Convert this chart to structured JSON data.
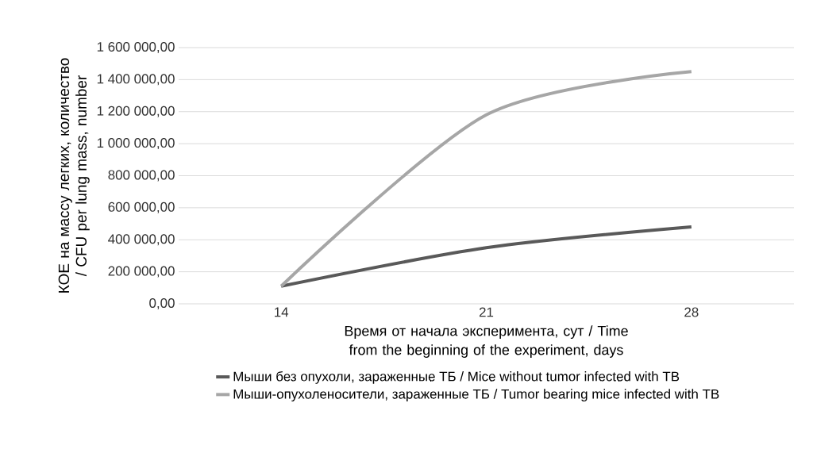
{
  "chart_data": {
    "type": "line",
    "xlabel": "Время от начала эксперимента, сут / Time from the beginning of the experiment, days",
    "ylabel": "КОЕ на массу легких, количество / CFU per lung mass, number",
    "categories": [
      "14",
      "21",
      "28"
    ],
    "series": [
      {
        "name": "Мыши без опухоли, зараженные ТБ / Mice without tumor infected with TB",
        "color": "#595959",
        "values": [
          110000,
          350000,
          480000
        ]
      },
      {
        "name": "Мыши-опухоленосители, зараженные ТБ / Tumor bearing mice infected with TB",
        "color": "#a6a6a6",
        "values": [
          110000,
          1180000,
          1450000
        ]
      }
    ],
    "ylim": [
      0,
      1600000
    ],
    "yticks": [
      {
        "value": 0,
        "label": "0,00"
      },
      {
        "value": 200000,
        "label": "200 000,00"
      },
      {
        "value": 400000,
        "label": "400 000,00"
      },
      {
        "value": 600000,
        "label": "600 000,00"
      },
      {
        "value": 800000,
        "label": "800 000,00"
      },
      {
        "value": 1000000,
        "label": "1 000 000,00"
      },
      {
        "value": 1200000,
        "label": "1 200 000,00"
      },
      {
        "value": 1400000,
        "label": "1 400 000,00"
      },
      {
        "value": 1600000,
        "label": "1 600 000,00"
      }
    ],
    "grid": "y",
    "legend": "bottom",
    "marker": "none",
    "line_style": "solid"
  }
}
